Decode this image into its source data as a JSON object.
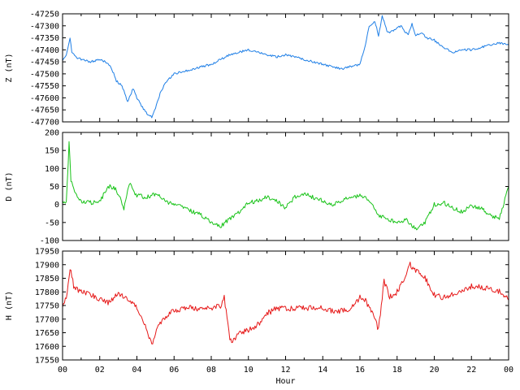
{
  "chart_data": [
    {
      "type": "line",
      "ylabel": "Z (nT)",
      "ylim": [
        -47700,
        -47250
      ],
      "yticks": [
        -47250,
        -47300,
        -47350,
        -47400,
        -47450,
        -47500,
        -47550,
        -47600,
        -47650,
        -47700
      ],
      "xlim": [
        0,
        24
      ],
      "color": "#1f7fe6",
      "series": [
        {
          "x": [
            0.0,
            0.2,
            0.4,
            0.5,
            0.7,
            1.0,
            1.5,
            2.0,
            2.3,
            2.6,
            2.9,
            3.2,
            3.4,
            3.5,
            3.8,
            4.0,
            4.3,
            4.6,
            4.8,
            5.0,
            5.3,
            5.6,
            6.0,
            6.5,
            7.0,
            7.5,
            8.0,
            8.5,
            9.0,
            9.5,
            10.0,
            10.5,
            11.0,
            11.5,
            12.0,
            12.5,
            13.0,
            13.5,
            14.0,
            14.5,
            15.0,
            15.5,
            16.0,
            16.3,
            16.5,
            16.8,
            17.0,
            17.2,
            17.5,
            17.8,
            18.2,
            18.6,
            18.8,
            19.0,
            19.3,
            19.6,
            20.0,
            20.5,
            21.0,
            21.5,
            22.0,
            22.5,
            23.0,
            23.5,
            24.0
          ],
          "y": [
            -47440,
            -47420,
            -47350,
            -47410,
            -47430,
            -47440,
            -47450,
            -47440,
            -47450,
            -47470,
            -47530,
            -47550,
            -47590,
            -47620,
            -47560,
            -47600,
            -47640,
            -47670,
            -47680,
            -47640,
            -47570,
            -47530,
            -47500,
            -47490,
            -47480,
            -47470,
            -47460,
            -47440,
            -47420,
            -47410,
            -47400,
            -47410,
            -47420,
            -47430,
            -47420,
            -47430,
            -47440,
            -47450,
            -47460,
            -47470,
            -47480,
            -47470,
            -47460,
            -47380,
            -47300,
            -47280,
            -47340,
            -47260,
            -47330,
            -47320,
            -47300,
            -47340,
            -47290,
            -47340,
            -47330,
            -47350,
            -47360,
            -47390,
            -47410,
            -47400,
            -47400,
            -47390,
            -47380,
            -47370,
            -47380
          ]
        }
      ]
    },
    {
      "type": "line",
      "ylabel": "D (nT)",
      "ylim": [
        -100,
        200
      ],
      "yticks": [
        200,
        150,
        100,
        50,
        0,
        -50,
        -100
      ],
      "xlim": [
        0,
        24
      ],
      "color": "#19c319",
      "series": [
        {
          "x": [
            0.0,
            0.2,
            0.35,
            0.45,
            0.6,
            0.8,
            1.0,
            1.5,
            2.0,
            2.5,
            2.8,
            3.0,
            3.3,
            3.6,
            3.8,
            4.0,
            4.5,
            5.0,
            5.5,
            6.0,
            6.5,
            7.0,
            7.5,
            8.0,
            8.5,
            9.0,
            9.5,
            10.0,
            10.5,
            11.0,
            11.5,
            12.0,
            12.5,
            13.0,
            13.5,
            14.0,
            14.5,
            15.0,
            15.5,
            16.0,
            16.5,
            17.0,
            17.5,
            18.0,
            18.5,
            19.0,
            19.5,
            20.0,
            20.5,
            21.0,
            21.5,
            22.0,
            22.5,
            23.0,
            23.5,
            24.0
          ],
          "y": [
            5,
            10,
            170,
            70,
            40,
            20,
            10,
            5,
            10,
            50,
            45,
            30,
            -10,
            60,
            40,
            25,
            20,
            30,
            10,
            0,
            -10,
            -20,
            -30,
            -50,
            -60,
            -40,
            -20,
            5,
            10,
            20,
            10,
            -10,
            20,
            30,
            20,
            10,
            0,
            10,
            20,
            25,
            10,
            -30,
            -40,
            -50,
            -40,
            -70,
            -50,
            0,
            5,
            -10,
            -20,
            -5,
            -10,
            -30,
            -40,
            50
          ]
        }
      ]
    },
    {
      "type": "line",
      "ylabel": "H (nT)",
      "xlabel": "Hour",
      "ylim": [
        17550,
        17950
      ],
      "yticks": [
        17950,
        17900,
        17850,
        17800,
        17750,
        17700,
        17650,
        17600,
        17550
      ],
      "xlim": [
        0,
        24
      ],
      "xticks": [
        "00",
        "02",
        "04",
        "06",
        "08",
        "10",
        "12",
        "14",
        "16",
        "18",
        "20",
        "22",
        "00"
      ],
      "color": "#e61919",
      "series": [
        {
          "x": [
            0.0,
            0.2,
            0.4,
            0.6,
            1.0,
            1.5,
            2.0,
            2.5,
            3.0,
            3.3,
            3.6,
            4.0,
            4.3,
            4.6,
            4.8,
            5.0,
            5.3,
            5.6,
            6.0,
            6.5,
            7.0,
            7.5,
            8.0,
            8.5,
            8.7,
            9.0,
            9.3,
            9.6,
            10.0,
            10.5,
            11.0,
            11.5,
            12.0,
            12.5,
            13.0,
            13.5,
            14.0,
            14.5,
            15.0,
            15.5,
            16.0,
            16.3,
            16.6,
            16.8,
            17.0,
            17.3,
            17.6,
            18.0,
            18.3,
            18.7,
            19.0,
            19.5,
            20.0,
            20.5,
            21.0,
            21.5,
            22.0,
            22.5,
            23.0,
            23.5,
            24.0
          ],
          "y": [
            17740,
            17780,
            17890,
            17820,
            17800,
            17790,
            17770,
            17760,
            17800,
            17780,
            17770,
            17740,
            17700,
            17650,
            17600,
            17650,
            17690,
            17710,
            17730,
            17740,
            17740,
            17740,
            17740,
            17750,
            17780,
            17620,
            17630,
            17650,
            17660,
            17680,
            17720,
            17740,
            17740,
            17740,
            17740,
            17740,
            17740,
            17730,
            17730,
            17740,
            17780,
            17770,
            17730,
            17700,
            17660,
            17840,
            17780,
            17800,
            17840,
            17900,
            17880,
            17850,
            17790,
            17780,
            17790,
            17810,
            17820,
            17820,
            17810,
            17800,
            17770
          ]
        }
      ]
    }
  ]
}
